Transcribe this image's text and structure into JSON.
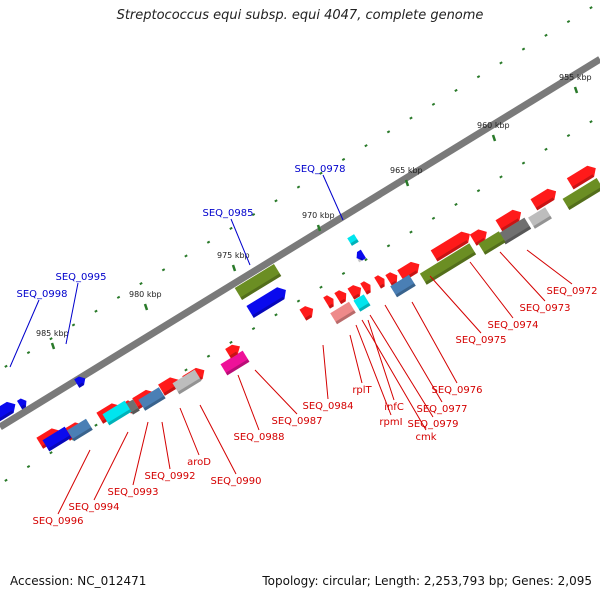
{
  "title": "Streptococcus equi subsp. equi 4047, complete genome",
  "footer": {
    "accession": "Accession: NC_012471",
    "summary": "Topology: circular; Length: 2,253,793 bp; Genes: 2,095"
  },
  "colors": {
    "backbone": "#7a7a7a",
    "label_red": "#d40000",
    "label_blue": "#0000cc",
    "tick_green": "#2a7a2a",
    "cds_red": "#ff1a1a",
    "blue": "#0a0aee",
    "olive": "#6b8e23",
    "steel": "#4a7fb5",
    "cyan": "#00e5ee",
    "gray": "#bdbdbd",
    "dark_gray": "#707070",
    "magenta": "#ee1199",
    "pink": "#ee8a8a"
  },
  "scale_ticks": [
    "955 kbp",
    "960 kbp",
    "965 kbp",
    "970 kbp",
    "975 kbp",
    "980 kbp",
    "985 kbp"
  ],
  "labels_upper": [
    "SEQ_0978",
    "SEQ_0985",
    "SEQ_0995",
    "SEQ_0998"
  ],
  "labels_lower": [
    "SEQ_0972",
    "SEQ_0973",
    "SEQ_0974",
    "SEQ_0975",
    "SEQ_0976",
    "SEQ_0977",
    "SEQ_0979",
    "cmk",
    "infC",
    "rpmI",
    "rplT",
    "SEQ_0984",
    "SEQ_0987",
    "SEQ_0988",
    "SEQ_0990",
    "aroD",
    "SEQ_0992",
    "SEQ_0993",
    "SEQ_0994",
    "SEQ_0996"
  ]
}
